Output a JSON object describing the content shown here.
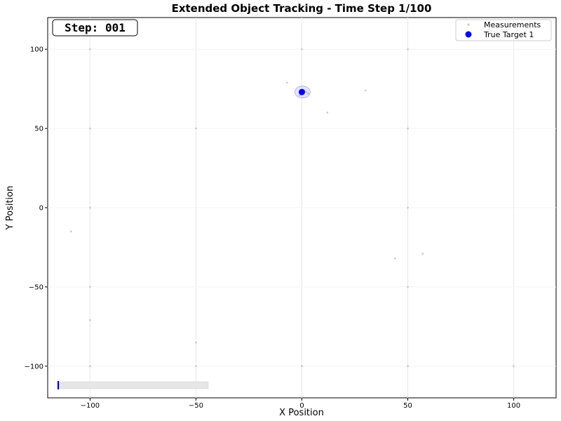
{
  "chart_data": {
    "type": "scatter",
    "title": "Extended Object Tracking - Time Step 1/100",
    "xlabel": "X Position",
    "ylabel": "Y Position",
    "xlim": [
      -120,
      120
    ],
    "ylim": [
      -120,
      120
    ],
    "x_ticks": [
      -100,
      -50,
      0,
      50,
      100
    ],
    "y_ticks": [
      -100,
      -50,
      0,
      50,
      100
    ],
    "x_tick_labels": [
      "−100",
      "−50",
      "0",
      "50",
      "100"
    ],
    "y_tick_labels": [
      "−100",
      "−50",
      "0",
      "50",
      "100"
    ],
    "grid": true,
    "legend_position": "top-right",
    "step_label": "Step: 001",
    "progress": 0.01,
    "series": [
      {
        "name": "Measurements",
        "color": "#cccccc",
        "points": [
          {
            "x": -7,
            "y": 79
          },
          {
            "x": 1,
            "y": 74
          },
          {
            "x": 2,
            "y": 73
          },
          {
            "x": 3,
            "y": 72
          },
          {
            "x": -1,
            "y": 71
          },
          {
            "x": 12,
            "y": 60
          },
          {
            "x": 30,
            "y": 74
          },
          {
            "x": 50,
            "y": 100
          },
          {
            "x": 50,
            "y": 50
          },
          {
            "x": 50,
            "y": 0
          },
          {
            "x": 50,
            "y": -50
          },
          {
            "x": 50,
            "y": -100
          },
          {
            "x": -100,
            "y": 100
          },
          {
            "x": -100,
            "y": 50
          },
          {
            "x": -100,
            "y": 0
          },
          {
            "x": -100,
            "y": -50
          },
          {
            "x": -100,
            "y": -71
          },
          {
            "x": -100,
            "y": -100
          },
          {
            "x": -109,
            "y": -15
          },
          {
            "x": -50,
            "y": -85
          },
          {
            "x": -50,
            "y": -100
          },
          {
            "x": -50,
            "y": 50
          },
          {
            "x": 0,
            "y": 100
          },
          {
            "x": 0,
            "y": -100
          },
          {
            "x": 44,
            "y": -32
          },
          {
            "x": 57,
            "y": -29
          },
          {
            "x": 100,
            "y": -100
          }
        ]
      },
      {
        "name": "True Target 1",
        "color": "#0000ee",
        "points": [
          {
            "x": 0,
            "y": 73
          }
        ],
        "extent_color": "#6a6aee"
      }
    ]
  }
}
